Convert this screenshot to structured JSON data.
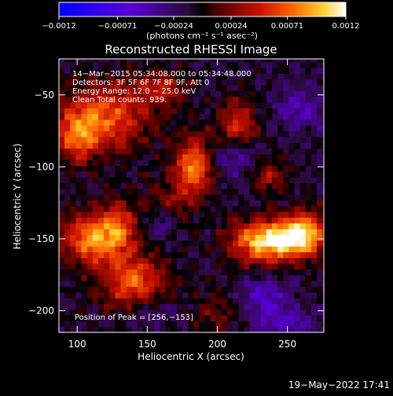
{
  "chart_data": {
    "type": "heatmap",
    "title": "Reconstructed RHESSI Image",
    "xlabel": "Heliocentric X (arcsec)",
    "ylabel": "Heliocentric Y (arcsec)",
    "xlim": [
      87,
      276
    ],
    "ylim": [
      -215,
      -25
    ],
    "x_ticks": [
      {
        "value": 100,
        "label": "100"
      },
      {
        "value": 150,
        "label": "150"
      },
      {
        "value": 200,
        "label": "200"
      },
      {
        "value": 250,
        "label": "250"
      }
    ],
    "y_ticks": [
      {
        "value": -50,
        "label": "−50"
      },
      {
        "value": -100,
        "label": "−100"
      },
      {
        "value": -150,
        "label": "−150"
      },
      {
        "value": -200,
        "label": "−200"
      }
    ],
    "colorbar": {
      "min": -0.0012,
      "max": 0.0012,
      "ticks": [
        {
          "value": -0.0012,
          "label": "−0.0012"
        },
        {
          "value": -0.00071,
          "label": "−0.00071"
        },
        {
          "value": -0.00024,
          "label": "−0.00024"
        },
        {
          "value": 0.00024,
          "label": "0.00024"
        },
        {
          "value": 0.00071,
          "label": "0.00071"
        },
        {
          "value": 0.0012,
          "label": "0.0012"
        }
      ],
      "unit_label": "(photons cm⁻² s⁻¹ asec⁻²)"
    },
    "info_lines": [
      "14−Mar−2015 05:34:08.000 to 05:34:48.000",
      "Detectors: 3F 5F 6F 7F 8F 9F, Att 0",
      "Energy Range: 12.0 − 25.0 keV",
      "Clean     Total counts: 939."
    ],
    "peak_label": "Position of Peak = [256,−153]",
    "peak": {
      "x": 256,
      "y": -153
    },
    "sources": [
      {
        "x": 250,
        "y": -150,
        "sx": 16,
        "sy": 10,
        "amp": 0.00115
      },
      {
        "x": 265,
        "y": -143,
        "sx": 10,
        "sy": 10,
        "amp": 0.0006
      },
      {
        "x": 225,
        "y": -152,
        "sx": 14,
        "sy": 10,
        "amp": 0.0007
      },
      {
        "x": 110,
        "y": -150,
        "sx": 16,
        "sy": 12,
        "amp": 0.0009
      },
      {
        "x": 130,
        "y": -140,
        "sx": 10,
        "sy": 12,
        "amp": 0.0006
      },
      {
        "x": 183,
        "y": -100,
        "sx": 10,
        "sy": 14,
        "amp": 0.0009
      },
      {
        "x": 120,
        "y": -65,
        "sx": 22,
        "sy": 16,
        "amp": 0.0008
      },
      {
        "x": 100,
        "y": -80,
        "sx": 10,
        "sy": 12,
        "amp": 0.0006
      },
      {
        "x": 215,
        "y": -70,
        "sx": 10,
        "sy": 12,
        "amp": 0.0006
      },
      {
        "x": 140,
        "y": -180,
        "sx": 16,
        "sy": 14,
        "amp": 0.0008
      },
      {
        "x": 235,
        "y": -105,
        "sx": 10,
        "sy": 8,
        "amp": 0.0005
      },
      {
        "x": 165,
        "y": -125,
        "sx": 12,
        "sy": 10,
        "amp": 0.0004
      },
      {
        "x": 200,
        "y": -200,
        "sx": 10,
        "sy": 10,
        "amp": 0.0003
      },
      {
        "x": 160,
        "y": -45,
        "sx": 14,
        "sy": 8,
        "amp": 0.0005
      },
      {
        "x": 232,
        "y": -190,
        "sx": 12,
        "sy": 8,
        "amp": -0.00045
      },
      {
        "x": 215,
        "y": -95,
        "sx": 12,
        "sy": 10,
        "amp": -0.0004
      },
      {
        "x": 160,
        "y": -135,
        "sx": 10,
        "sy": 10,
        "amp": -0.0003
      },
      {
        "x": 260,
        "y": -60,
        "sx": 12,
        "sy": 10,
        "amp": -0.0004
      },
      {
        "x": 150,
        "y": -200,
        "sx": 12,
        "sy": 8,
        "amp": -0.0003
      },
      {
        "x": 248,
        "y": -208,
        "sx": 14,
        "sy": 8,
        "amp": -0.0004
      }
    ],
    "grid": false
  },
  "footer_date": "19−May−2022 17:41"
}
